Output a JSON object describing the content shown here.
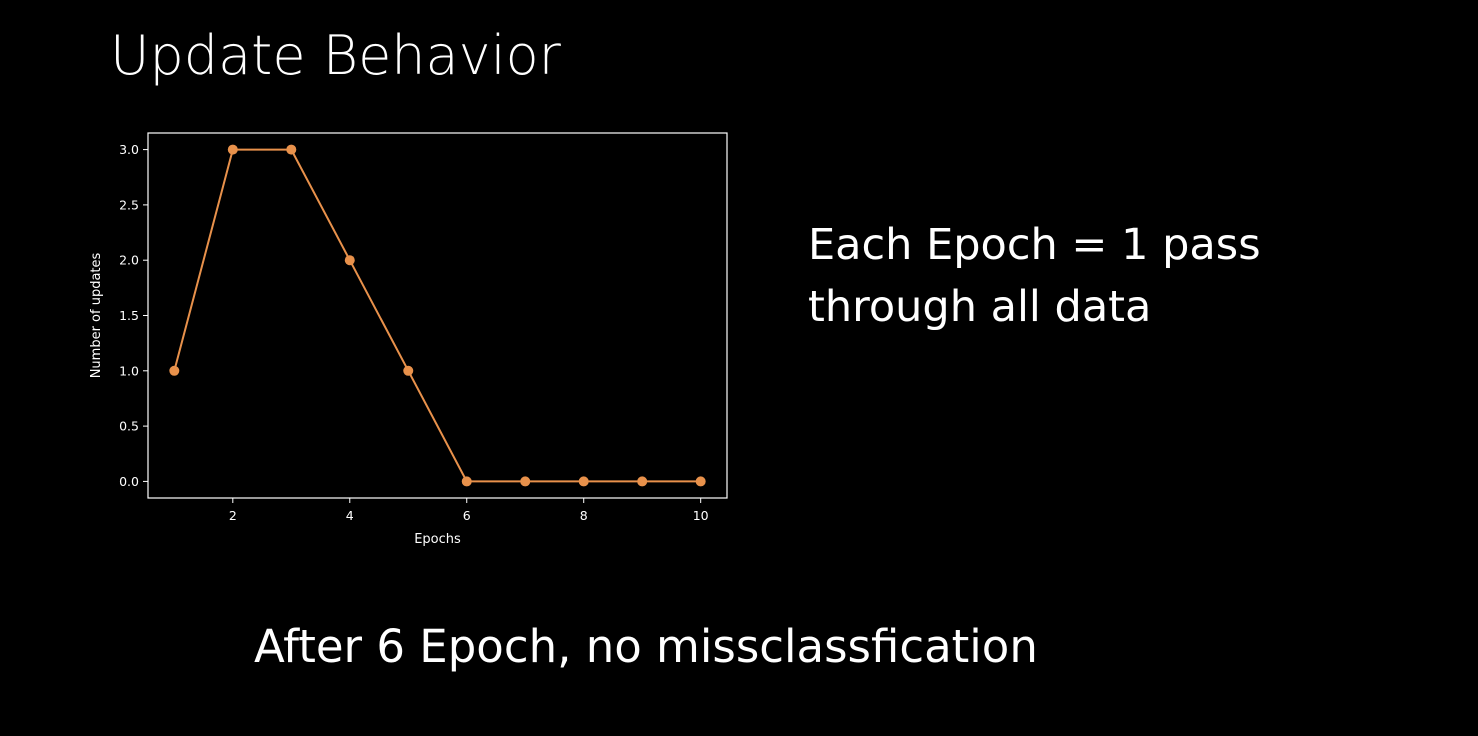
{
  "slide": {
    "title": "Update Behavior",
    "note_lines": [
      "Each Epoch = 1 pass",
      "through all data"
    ],
    "bottom_note": "After 6 Epoch, no missclassfication"
  },
  "chart_data": {
    "type": "line",
    "x": [
      1,
      2,
      3,
      4,
      5,
      6,
      7,
      8,
      9,
      10
    ],
    "series": [
      {
        "values": [
          1,
          3,
          3,
          2,
          1,
          0,
          0,
          0,
          0,
          0
        ]
      }
    ],
    "xlabel": "Epochs",
    "ylabel": "Number of updates",
    "xticks": [
      "2",
      "4",
      "6",
      "8",
      "10"
    ],
    "yticks": [
      "0.0",
      "0.5",
      "1.0",
      "1.5",
      "2.0",
      "2.5",
      "3.0"
    ],
    "xlim": [
      0.55,
      10.45
    ],
    "ylim": [
      -0.15,
      3.15
    ],
    "grid": false,
    "colors": {
      "line": "#e8914b",
      "axes": "#ffffff",
      "background": "#000000"
    }
  }
}
